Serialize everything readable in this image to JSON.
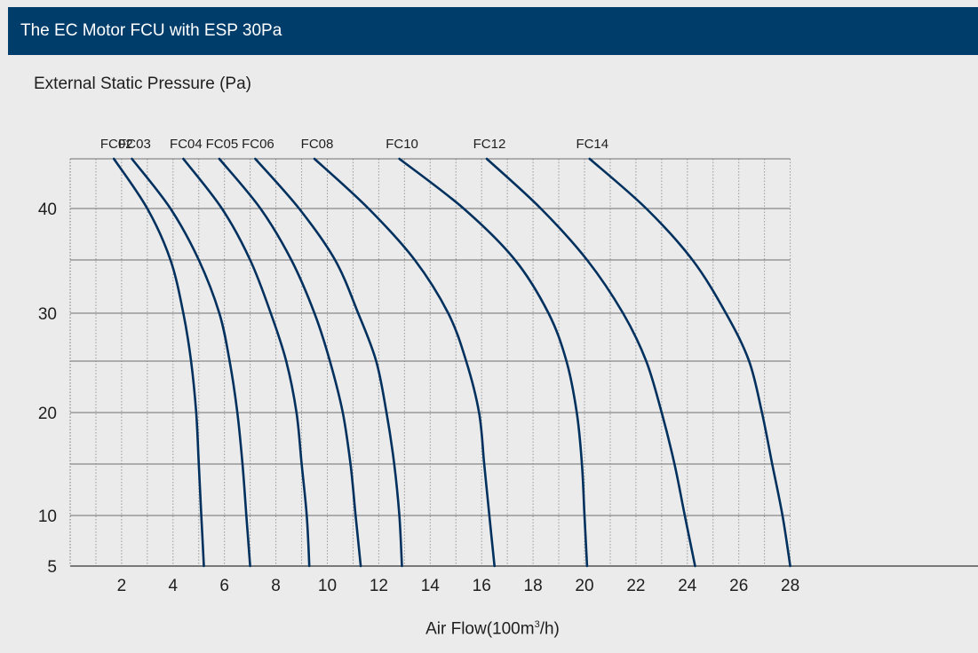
{
  "header": {
    "title": "The EC Motor FCU with ESP 30Pa"
  },
  "colors": {
    "header_bg": "#003d6b",
    "curve": "#00305e",
    "background": "#ebebeb"
  },
  "chart_data": {
    "type": "line",
    "title": "The EC Motor FCU with ESP 30Pa",
    "ylabel": "External Static Pressure (Pa)",
    "xlabel": {
      "prefix": "Air Flow(100m",
      "sup": "3",
      "suffix": "/h)"
    },
    "xlim": [
      0,
      28
    ],
    "ylim": [
      5,
      45
    ],
    "x_ticks": [
      2,
      4,
      6,
      8,
      10,
      12,
      14,
      16,
      18,
      20,
      22,
      24,
      26,
      28
    ],
    "y_ticks": [
      5,
      10,
      20,
      30,
      40
    ],
    "grid": true,
    "series": [
      {
        "name": "FC02",
        "points": [
          [
            1.7,
            45
          ],
          [
            3.0,
            40
          ],
          [
            3.9,
            35
          ],
          [
            4.4,
            30
          ],
          [
            4.7,
            25
          ],
          [
            4.9,
            20
          ],
          [
            5.0,
            15
          ],
          [
            5.1,
            10
          ],
          [
            5.2,
            5
          ]
        ]
      },
      {
        "name": "FC03",
        "points": [
          [
            2.4,
            45
          ],
          [
            3.9,
            40
          ],
          [
            5.0,
            35
          ],
          [
            5.8,
            30
          ],
          [
            6.2,
            25
          ],
          [
            6.5,
            20
          ],
          [
            6.7,
            15
          ],
          [
            6.85,
            10
          ],
          [
            7.0,
            5
          ]
        ]
      },
      {
        "name": "FC04",
        "points": [
          [
            4.4,
            45
          ],
          [
            5.9,
            40
          ],
          [
            7.0,
            35
          ],
          [
            7.8,
            30
          ],
          [
            8.4,
            25
          ],
          [
            8.8,
            20
          ],
          [
            9.0,
            15
          ],
          [
            9.2,
            10
          ],
          [
            9.3,
            5
          ]
        ]
      },
      {
        "name": "FC05",
        "points": [
          [
            5.8,
            45
          ],
          [
            7.4,
            40
          ],
          [
            8.6,
            35
          ],
          [
            9.5,
            30
          ],
          [
            10.1,
            25
          ],
          [
            10.6,
            20
          ],
          [
            10.9,
            15
          ],
          [
            11.1,
            10
          ],
          [
            11.3,
            5
          ]
        ]
      },
      {
        "name": "FC06",
        "points": [
          [
            7.2,
            45
          ],
          [
            8.9,
            40
          ],
          [
            10.3,
            35
          ],
          [
            11.2,
            30
          ],
          [
            11.9,
            25
          ],
          [
            12.3,
            20
          ],
          [
            12.6,
            15
          ],
          [
            12.8,
            10
          ],
          [
            12.9,
            5
          ]
        ]
      },
      {
        "name": "FC08",
        "points": [
          [
            9.5,
            45
          ],
          [
            11.6,
            40
          ],
          [
            13.4,
            35
          ],
          [
            14.7,
            30
          ],
          [
            15.4,
            25
          ],
          [
            15.9,
            20
          ],
          [
            16.1,
            15
          ],
          [
            16.3,
            10
          ],
          [
            16.5,
            5
          ]
        ]
      },
      {
        "name": "FC10",
        "points": [
          [
            12.8,
            45
          ],
          [
            15.3,
            40
          ],
          [
            17.3,
            35
          ],
          [
            18.6,
            30
          ],
          [
            19.3,
            25
          ],
          [
            19.7,
            20
          ],
          [
            19.9,
            15
          ],
          [
            20.0,
            10
          ],
          [
            20.1,
            5
          ]
        ]
      },
      {
        "name": "FC12",
        "points": [
          [
            16.2,
            45
          ],
          [
            18.3,
            40
          ],
          [
            20.1,
            35
          ],
          [
            21.5,
            30
          ],
          [
            22.4,
            25
          ],
          [
            23.0,
            20
          ],
          [
            23.5,
            15
          ],
          [
            23.9,
            10
          ],
          [
            24.3,
            5
          ]
        ]
      },
      {
        "name": "FC14",
        "points": [
          [
            20.2,
            45
          ],
          [
            22.4,
            40
          ],
          [
            24.2,
            35
          ],
          [
            25.5,
            30
          ],
          [
            26.4,
            25
          ],
          [
            26.9,
            20
          ],
          [
            27.3,
            15
          ],
          [
            27.7,
            10
          ],
          [
            28.0,
            5
          ]
        ]
      }
    ]
  }
}
